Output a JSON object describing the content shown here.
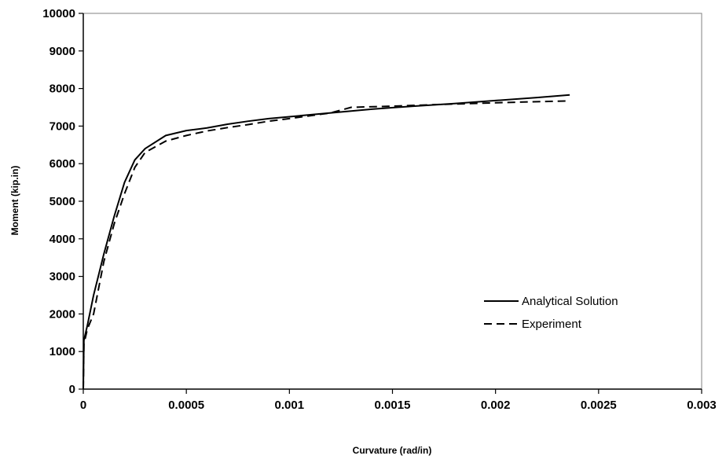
{
  "chart_data": {
    "type": "line",
    "title": "",
    "xlabel": "Curvature (rad/in)",
    "ylabel": "Moment (kip.in)",
    "xlim": [
      0,
      0.003
    ],
    "ylim": [
      0,
      10000
    ],
    "x_ticks": [
      0,
      0.0005,
      0.001,
      0.0015,
      0.002,
      0.0025,
      0.003
    ],
    "x_tick_labels": [
      "0",
      "0.0005",
      "0.001",
      "0.0015",
      "0.002",
      "0.0025",
      "0.003"
    ],
    "y_ticks": [
      0,
      1000,
      2000,
      3000,
      4000,
      5000,
      6000,
      7000,
      8000,
      9000,
      10000
    ],
    "y_tick_labels": [
      "0",
      "1000",
      "2000",
      "3000",
      "4000",
      "5000",
      "6000",
      "7000",
      "8000",
      "9000",
      "10000"
    ],
    "grid": false,
    "legend_position": "lower-right",
    "series": [
      {
        "name": "Analytical Solution",
        "style": "solid",
        "color": "#000000",
        "points": [
          [
            0,
            0
          ],
          [
            3e-06,
            1300
          ],
          [
            2e-05,
            1700
          ],
          [
            5e-05,
            2500
          ],
          [
            0.0001,
            3600
          ],
          [
            0.00015,
            4600
          ],
          [
            0.0002,
            5500
          ],
          [
            0.00025,
            6100
          ],
          [
            0.0003,
            6400
          ],
          [
            0.0004,
            6750
          ],
          [
            0.0005,
            6880
          ],
          [
            0.0006,
            6950
          ],
          [
            0.0007,
            7050
          ],
          [
            0.0008,
            7130
          ],
          [
            0.0009,
            7200
          ],
          [
            0.001,
            7250
          ],
          [
            0.0012,
            7350
          ],
          [
            0.0014,
            7450
          ],
          [
            0.0016,
            7530
          ],
          [
            0.0018,
            7600
          ],
          [
            0.002,
            7680
          ],
          [
            0.0022,
            7760
          ],
          [
            0.00236,
            7830
          ]
        ]
      },
      {
        "name": "Experiment",
        "style": "dashed",
        "color": "#000000",
        "points": [
          [
            0,
            0
          ],
          [
            3e-06,
            1200
          ],
          [
            2e-05,
            1600
          ],
          [
            5e-05,
            2000
          ],
          [
            0.0001,
            3400
          ],
          [
            0.00015,
            4400
          ],
          [
            0.0002,
            5200
          ],
          [
            0.00025,
            5900
          ],
          [
            0.0003,
            6300
          ],
          [
            0.0004,
            6600
          ],
          [
            0.0005,
            6750
          ],
          [
            0.0006,
            6870
          ],
          [
            0.0007,
            6960
          ],
          [
            0.0008,
            7040
          ],
          [
            0.0009,
            7130
          ],
          [
            0.001,
            7200
          ],
          [
            0.0012,
            7350
          ],
          [
            0.0013,
            7500
          ],
          [
            0.0015,
            7530
          ],
          [
            0.0017,
            7570
          ],
          [
            0.002,
            7620
          ],
          [
            0.0022,
            7650
          ],
          [
            0.00236,
            7670
          ]
        ]
      }
    ]
  }
}
